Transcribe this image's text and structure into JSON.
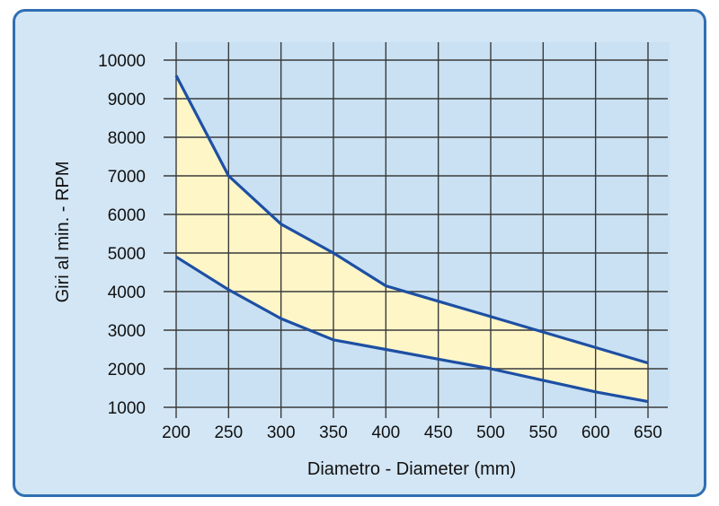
{
  "chart_data": {
    "type": "area",
    "title": "",
    "xlabel": "Diametro - Diameter (mm)",
    "ylabel": "Giri al min. - RPM",
    "xlim": [
      200,
      650
    ],
    "ylim": [
      1000,
      10000
    ],
    "x_ticks": [
      "200",
      "250",
      "300",
      "350",
      "400",
      "450",
      "500",
      "550",
      "600",
      "650"
    ],
    "y_ticks": [
      "10000",
      "9000",
      "8000",
      "7000",
      "6000",
      "5000",
      "4000",
      "3000",
      "2000",
      "1000"
    ],
    "grid": true,
    "band_fill": "#fff6c8",
    "line_color": "#1d4fa3",
    "series": [
      {
        "x": [
          200,
          250,
          300,
          350,
          400,
          450,
          500,
          550,
          600,
          650
        ],
        "values": [
          9600,
          7000,
          5750,
          5000,
          4150,
          3750,
          3350,
          2950,
          2550,
          2150
        ]
      },
      {
        "x": [
          200,
          250,
          300,
          350,
          400,
          450,
          500,
          550,
          600,
          650
        ],
        "values": [
          4900,
          4050,
          3300,
          2750,
          2500,
          2250,
          2000,
          1700,
          1400,
          1150
        ]
      }
    ]
  }
}
